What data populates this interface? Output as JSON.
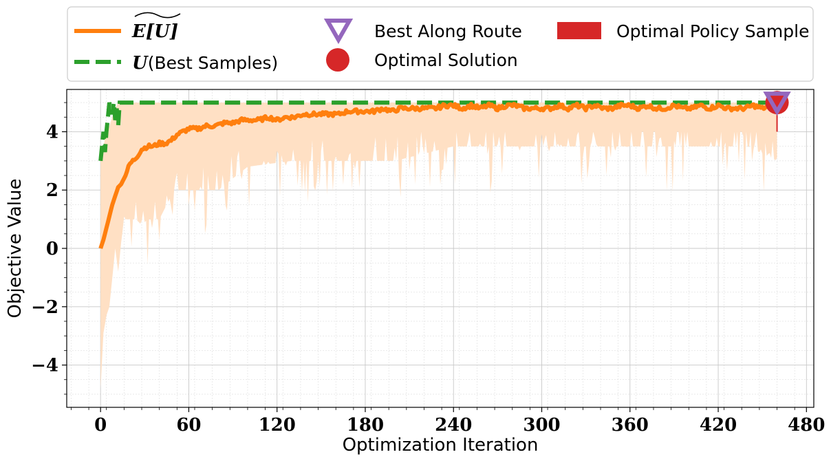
{
  "chart_data": {
    "type": "line",
    "title": "",
    "xlabel": "Optimization Iteration",
    "ylabel": "Objective Value",
    "xlim": [
      -23,
      485
    ],
    "ylim": [
      -5.45,
      5.45
    ],
    "xticks": [
      0,
      60,
      120,
      180,
      240,
      300,
      360,
      420,
      480
    ],
    "xtick_labels": [
      "0",
      "60",
      "120",
      "180",
      "240",
      "300",
      "360",
      "420",
      "480"
    ],
    "yticks": [
      -4,
      -2,
      0,
      2,
      4
    ],
    "ytick_labels": [
      "−4",
      "−2",
      "0",
      "2",
      "4"
    ],
    "grid": true,
    "legend_position": "top",
    "colors": {
      "expected": "#ff7f0e",
      "band": "#ffe0c4",
      "best_samples": "#2ca02c",
      "best_along_route": "#9467bd",
      "optimal_solution": "#d62728",
      "optimal_policy_sample": "#d62728"
    },
    "series": [
      {
        "name": "E[U]",
        "style": "solid",
        "x": [
          0,
          2,
          4,
          6,
          8,
          10,
          12,
          14,
          16,
          20,
          24,
          28,
          32,
          36,
          40,
          44,
          48,
          52,
          56,
          60,
          66,
          72,
          78,
          84,
          90,
          96,
          102,
          108,
          114,
          120,
          126,
          132,
          138,
          144,
          150,
          156,
          162,
          168,
          174,
          180,
          186,
          192,
          198,
          204,
          210,
          216,
          222,
          228,
          234,
          240,
          246,
          252,
          258,
          264,
          270,
          276,
          282,
          288,
          294,
          300,
          306,
          312,
          318,
          324,
          330,
          336,
          342,
          348,
          354,
          360,
          366,
          372,
          378,
          384,
          390,
          396,
          402,
          408,
          414,
          420,
          426,
          432,
          438,
          444,
          450,
          456,
          460
        ],
        "values": [
          0.0,
          0.3,
          0.7,
          1.1,
          1.5,
          1.8,
          2.1,
          2.2,
          2.4,
          2.9,
          3.1,
          3.4,
          3.5,
          3.5,
          3.6,
          3.6,
          3.7,
          3.9,
          4.0,
          4.1,
          4.1,
          4.2,
          4.2,
          4.3,
          4.3,
          4.4,
          4.4,
          4.4,
          4.5,
          4.4,
          4.5,
          4.5,
          4.6,
          4.6,
          4.6,
          4.6,
          4.6,
          4.7,
          4.7,
          4.7,
          4.7,
          4.8,
          4.7,
          4.8,
          4.8,
          4.8,
          4.8,
          4.8,
          4.9,
          4.9,
          4.8,
          4.9,
          4.8,
          4.9,
          4.8,
          4.9,
          4.9,
          4.8,
          4.8,
          4.8,
          4.8,
          4.9,
          4.8,
          4.9,
          4.8,
          4.9,
          4.8,
          4.8,
          4.9,
          4.9,
          4.8,
          4.9,
          4.8,
          4.8,
          4.9,
          4.8,
          4.8,
          4.9,
          4.8,
          4.9,
          4.8,
          4.8,
          4.8,
          4.9,
          4.8,
          4.9,
          5.0
        ]
      },
      {
        "name": "U(Best Samples)",
        "style": "dashed",
        "x": [
          0,
          1,
          2,
          3,
          4,
          5,
          6,
          7,
          8,
          9,
          10,
          11,
          12,
          13,
          14,
          460
        ],
        "values": [
          3.0,
          3.5,
          4.0,
          3.3,
          4.0,
          4.5,
          5.0,
          4.8,
          4.6,
          5.0,
          4.4,
          4.8,
          4.2,
          5.0,
          5.0,
          5.0
        ]
      }
    ],
    "band": {
      "x": [
        0,
        2,
        4,
        6,
        8,
        10,
        12,
        14,
        16,
        20,
        24,
        28,
        32,
        36,
        40,
        50,
        60,
        80,
        100,
        130,
        160,
        180,
        200,
        240,
        280,
        320,
        360,
        400,
        440,
        460
      ],
      "lower": [
        -4.8,
        -2.9,
        -2.3,
        -2.0,
        -1.0,
        0.0,
        -0.8,
        0.2,
        1.0,
        1.0,
        1.0,
        0.8,
        1.0,
        1.0,
        1.0,
        2.0,
        2.0,
        2.0,
        2.8,
        3.0,
        3.0,
        3.0,
        3.0,
        3.5,
        3.5,
        3.5,
        3.5,
        3.5,
        3.5,
        3.0
      ],
      "upper": [
        3.0,
        3.5,
        4.0,
        4.2,
        4.5,
        4.8,
        5.0,
        5.0,
        5.0,
        5.0,
        5.0,
        5.0,
        5.0,
        5.0,
        5.0,
        5.0,
        5.0,
        5.0,
        5.0,
        5.0,
        5.0,
        5.0,
        5.0,
        5.0,
        5.0,
        5.0,
        5.0,
        5.0,
        5.0,
        5.0
      ]
    },
    "markers": {
      "best_along_route": {
        "x": 460,
        "y": 5.0
      },
      "optimal_solution": {
        "x": 460,
        "y": 5.0
      },
      "optimal_policy_sample": {
        "x": 460,
        "y0": 4.0,
        "y1": 5.0
      }
    },
    "legend": [
      {
        "key": "expected",
        "label": "E[U]"
      },
      {
        "key": "best_samples",
        "label_math": "U",
        "label": "(Best Samples)"
      },
      {
        "key": "best_along_route",
        "label": "Best Along Route"
      },
      {
        "key": "optimal_solution",
        "label": "Optimal Solution"
      },
      {
        "key": "optimal_policy_sample",
        "label": "Optimal Policy Sample"
      }
    ]
  }
}
